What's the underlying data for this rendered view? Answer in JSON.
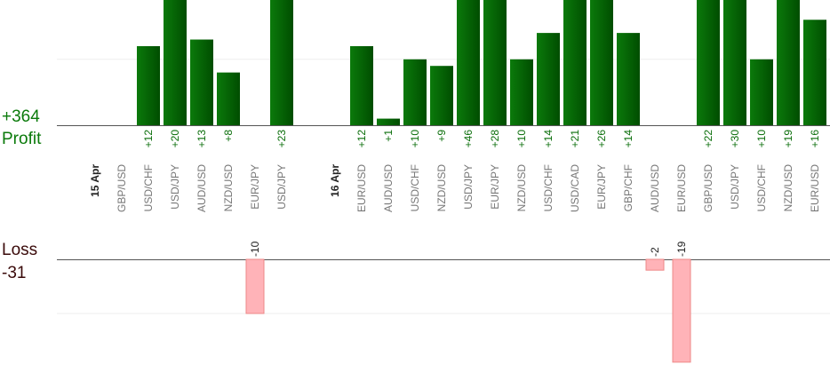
{
  "chart_data": {
    "type": "bar",
    "profit_label": "Profit",
    "profit_total": "+364",
    "loss_label": "Loss",
    "loss_total": "-31",
    "profit_color": "#0a6e0a",
    "loss_color": "#ffb3b8",
    "profit_ylim": [
      0,
      19
    ],
    "loss_ylim": [
      0,
      -21
    ],
    "profit_grid": [
      10
    ],
    "loss_grid": [
      -10
    ],
    "groups": [
      {
        "date": "15 Apr",
        "categories": [
          "GBP/USD",
          "USD/CHF",
          "USD/JPY",
          "AUD/USD",
          "NZD/USD",
          "EUR/JPY",
          "USD/JPY"
        ],
        "profit": [
          null,
          12,
          20,
          13,
          8,
          null,
          23
        ],
        "value_labels": [
          null,
          "+12",
          "+20",
          "+13",
          "+8",
          null,
          "+23"
        ],
        "loss": [
          null,
          null,
          null,
          null,
          null,
          -10,
          null
        ]
      },
      {
        "date": "16 Apr",
        "categories": [
          "EUR/USD",
          "AUD/USD",
          "USD/CHF",
          "NZD/USD",
          "USD/JPY",
          "EUR/JPY",
          "NZD/USD",
          "USD/CHF",
          "USD/CAD",
          "EUR/JPY",
          "GBP/CHF",
          "AUD/USD",
          "EUR/USD",
          "GBP/USD",
          "USD/JPY",
          "USD/CHF",
          "NZD/USD",
          "EUR/USD"
        ],
        "profit": [
          12,
          1,
          10,
          9,
          46,
          28,
          10,
          14,
          21,
          26,
          14,
          null,
          null,
          22,
          30,
          10,
          19,
          16
        ],
        "value_labels": [
          "+12",
          "+1",
          "+10",
          "+9",
          "+46",
          "+28",
          "+10",
          "+14",
          "+21",
          "+26",
          "+14",
          null,
          null,
          "+22",
          "+30",
          "+10",
          "+19",
          "+16"
        ],
        "loss": [
          null,
          null,
          null,
          null,
          null,
          null,
          null,
          null,
          null,
          null,
          null,
          -2,
          -19,
          null,
          null,
          null,
          null,
          null
        ]
      }
    ]
  }
}
